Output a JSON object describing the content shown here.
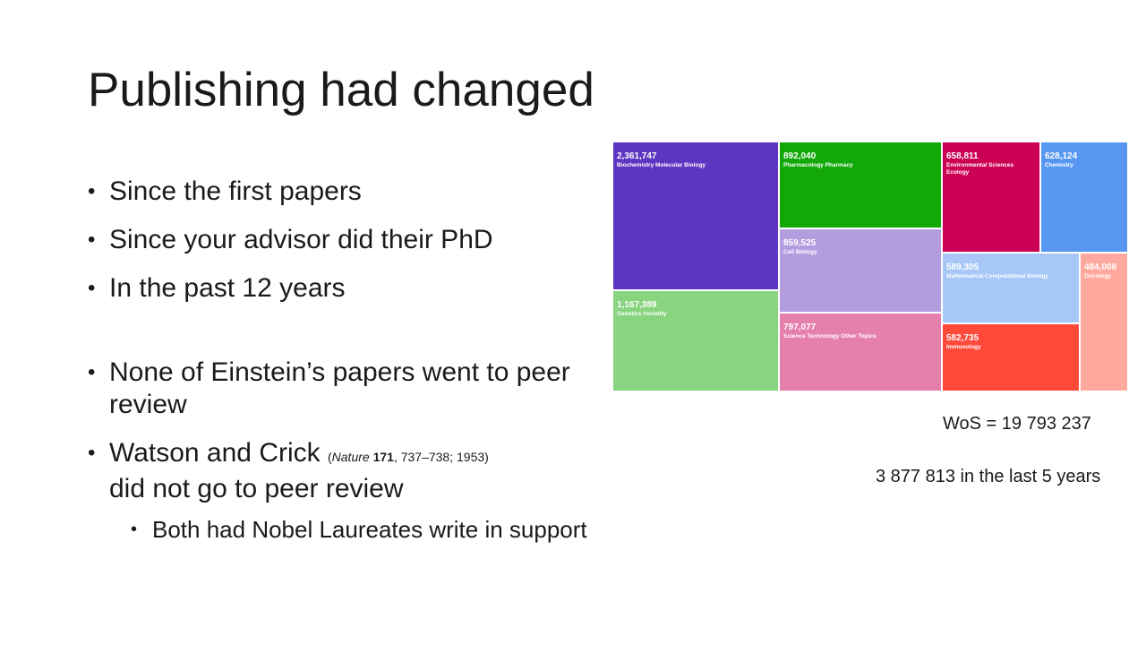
{
  "title": "Publishing had changed",
  "bullets": [
    "Since the first papers",
    "Since your advisor did their PhD",
    "In the past 12 years",
    "None of Einstein’s papers went to peer review"
  ],
  "watson": {
    "lead": "Watson and Crick",
    "cite_open": "(",
    "cite_journal": "Nature",
    "cite_volume": "171",
    "cite_rest": ", 737–738; 1953)",
    "tail": "did not go to peer review"
  },
  "sub_bullet": "Both had Nobel Laureates write in support",
  "treemap": {
    "cells": [
      {
        "value": "2,361,747",
        "label": "Biochemistry Molecular Biology",
        "color": "#5e35c0"
      },
      {
        "value": "1,167,389",
        "label": "Genetics Heredity",
        "color": "#88d47f"
      },
      {
        "value": "892,040",
        "label": "Pharmacology Pharmacy",
        "color": "#12a808"
      },
      {
        "value": "859,525",
        "label": "Cell Biology",
        "color": "#b39ddf"
      },
      {
        "value": "797,077",
        "label": "Science Technology Other Topics",
        "color": "#e57fac"
      },
      {
        "value": "658,811",
        "label": "Environmental Sciences Ecology",
        "color": "#cc0054"
      },
      {
        "value": "628,124",
        "label": "Chemistry",
        "color": "#5797f2"
      },
      {
        "value": "589,305",
        "label": "Mathematical Computational Biology",
        "color": "#a7c8f7"
      },
      {
        "value": "484,008",
        "label": "Oncology",
        "color": "#ffa89d"
      },
      {
        "value": "582,735",
        "label": "Immunology",
        "color": "#ff4a3a"
      }
    ]
  },
  "wos": "WoS = 19 793 237",
  "last5": "3 877 813 in the last 5 years"
}
